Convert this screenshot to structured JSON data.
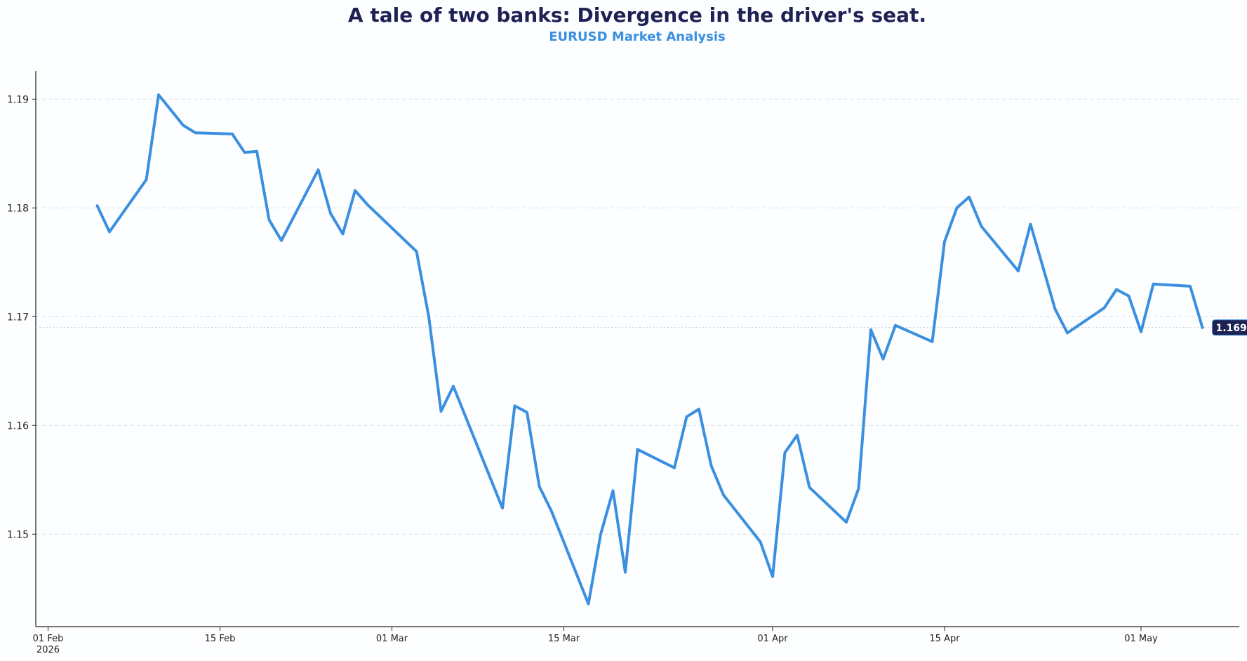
{
  "chart_data": {
    "type": "line",
    "title": "A tale of two banks: Divergence in the driver's seat.",
    "subtitle": "EURUSD Market Analysis",
    "xlabel": "",
    "ylabel": "",
    "x_ticks": [
      {
        "date": "2026-02-01",
        "label": "01 Feb",
        "sublabel": "2026"
      },
      {
        "date": "2026-02-15",
        "label": "15 Feb",
        "sublabel": ""
      },
      {
        "date": "2026-03-01",
        "label": "01 Mar",
        "sublabel": ""
      },
      {
        "date": "2026-03-15",
        "label": "15 Mar",
        "sublabel": ""
      },
      {
        "date": "2026-04-01",
        "label": "01 Apr",
        "sublabel": ""
      },
      {
        "date": "2026-04-15",
        "label": "15 Apr",
        "sublabel": ""
      },
      {
        "date": "2026-05-01",
        "label": "01 May",
        "sublabel": ""
      }
    ],
    "y_ticks": [
      {
        "value": 1.15,
        "label": "1.15"
      },
      {
        "value": 1.16,
        "label": "1.16"
      },
      {
        "value": 1.17,
        "label": "1.17"
      },
      {
        "value": 1.18,
        "label": "1.18"
      },
      {
        "value": 1.19,
        "label": "1.19"
      }
    ],
    "xlim": [
      "2026-01-31",
      "2026-05-09"
    ],
    "ylim": [
      1.1415,
      1.1926
    ],
    "grid": "horizontal-dashed",
    "series": [
      {
        "name": "",
        "color": "#3a8fe0",
        "points": [
          {
            "x": "2026-02-05",
            "y": 1.1802
          },
          {
            "x": "2026-02-06",
            "y": 1.1778
          },
          {
            "x": "2026-02-09",
            "y": 1.1826
          },
          {
            "x": "2026-02-10",
            "y": 1.1904
          },
          {
            "x": "2026-02-12",
            "y": 1.1876
          },
          {
            "x": "2026-02-13",
            "y": 1.1869
          },
          {
            "x": "2026-02-16",
            "y": 1.1868
          },
          {
            "x": "2026-02-17",
            "y": 1.1851
          },
          {
            "x": "2026-02-18",
            "y": 1.1852
          },
          {
            "x": "2026-02-19",
            "y": 1.1789
          },
          {
            "x": "2026-02-20",
            "y": 1.177
          },
          {
            "x": "2026-02-23",
            "y": 1.1835
          },
          {
            "x": "2026-02-24",
            "y": 1.1795
          },
          {
            "x": "2026-02-25",
            "y": 1.1776
          },
          {
            "x": "2026-02-26",
            "y": 1.1816
          },
          {
            "x": "2026-02-27",
            "y": 1.1803
          },
          {
            "x": "2026-03-03",
            "y": 1.176
          },
          {
            "x": "2026-03-04",
            "y": 1.17
          },
          {
            "x": "2026-03-05",
            "y": 1.1613
          },
          {
            "x": "2026-03-06",
            "y": 1.1636
          },
          {
            "x": "2026-03-10",
            "y": 1.1524
          },
          {
            "x": "2026-03-11",
            "y": 1.1618
          },
          {
            "x": "2026-03-12",
            "y": 1.1612
          },
          {
            "x": "2026-03-13",
            "y": 1.1544
          },
          {
            "x": "2026-03-14",
            "y": 1.1521
          },
          {
            "x": "2026-03-17",
            "y": 1.1436
          },
          {
            "x": "2026-03-18",
            "y": 1.15
          },
          {
            "x": "2026-03-19",
            "y": 1.154
          },
          {
            "x": "2026-03-20",
            "y": 1.1465
          },
          {
            "x": "2026-03-21",
            "y": 1.1578
          },
          {
            "x": "2026-03-24",
            "y": 1.1561
          },
          {
            "x": "2026-03-25",
            "y": 1.1608
          },
          {
            "x": "2026-03-26",
            "y": 1.1615
          },
          {
            "x": "2026-03-27",
            "y": 1.1563
          },
          {
            "x": "2026-03-28",
            "y": 1.1536
          },
          {
            "x": "2026-03-31",
            "y": 1.1493
          },
          {
            "x": "2026-04-01",
            "y": 1.1461
          },
          {
            "x": "2026-04-02",
            "y": 1.1575
          },
          {
            "x": "2026-04-03",
            "y": 1.1591
          },
          {
            "x": "2026-04-04",
            "y": 1.1543
          },
          {
            "x": "2026-04-07",
            "y": 1.1511
          },
          {
            "x": "2026-04-08",
            "y": 1.1542
          },
          {
            "x": "2026-04-09",
            "y": 1.1688
          },
          {
            "x": "2026-04-10",
            "y": 1.1661
          },
          {
            "x": "2026-04-11",
            "y": 1.1692
          },
          {
            "x": "2026-04-14",
            "y": 1.1677
          },
          {
            "x": "2026-04-15",
            "y": 1.1769
          },
          {
            "x": "2026-04-16",
            "y": 1.18
          },
          {
            "x": "2026-04-17",
            "y": 1.181
          },
          {
            "x": "2026-04-18",
            "y": 1.1783
          },
          {
            "x": "2026-04-21",
            "y": 1.1742
          },
          {
            "x": "2026-04-22",
            "y": 1.1785
          },
          {
            "x": "2026-04-24",
            "y": 1.1707
          },
          {
            "x": "2026-04-25",
            "y": 1.1685
          },
          {
            "x": "2026-04-28",
            "y": 1.1708
          },
          {
            "x": "2026-04-29",
            "y": 1.1725
          },
          {
            "x": "2026-04-30",
            "y": 1.1719
          },
          {
            "x": "2026-05-01",
            "y": 1.1686
          },
          {
            "x": "2026-05-02",
            "y": 1.173
          },
          {
            "x": "2026-05-05",
            "y": 1.1728
          },
          {
            "x": "2026-05-06",
            "y": 1.169
          }
        ]
      }
    ],
    "last_value": {
      "value": 1.169,
      "label": "1.1690"
    }
  }
}
